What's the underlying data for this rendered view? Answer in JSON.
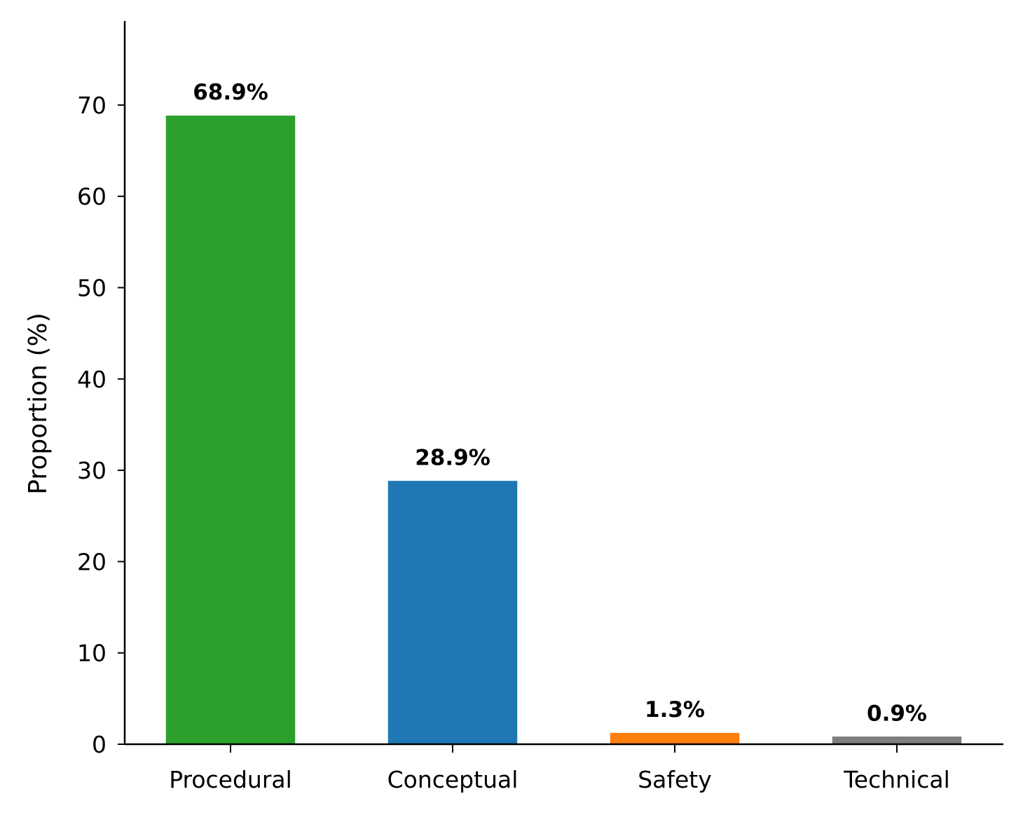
{
  "chart_data": {
    "type": "bar",
    "title": "",
    "xlabel": "",
    "ylabel": "Proportion (%)",
    "categories": [
      "Procedural",
      "Conceptual",
      "Safety",
      "Technical"
    ],
    "values": [
      68.9,
      28.9,
      1.3,
      0.9
    ],
    "data_labels": [
      "68.9%",
      "28.9%",
      "1.3%",
      "0.9%"
    ],
    "colors": [
      "#2ca02c",
      "#1f77b4",
      "#ff7f0e",
      "#7f7f7f"
    ],
    "yticks": [
      0,
      10,
      20,
      30,
      40,
      50,
      60,
      70
    ],
    "ylim": [
      0,
      79.2
    ],
    "grid": false,
    "legend": "none"
  }
}
